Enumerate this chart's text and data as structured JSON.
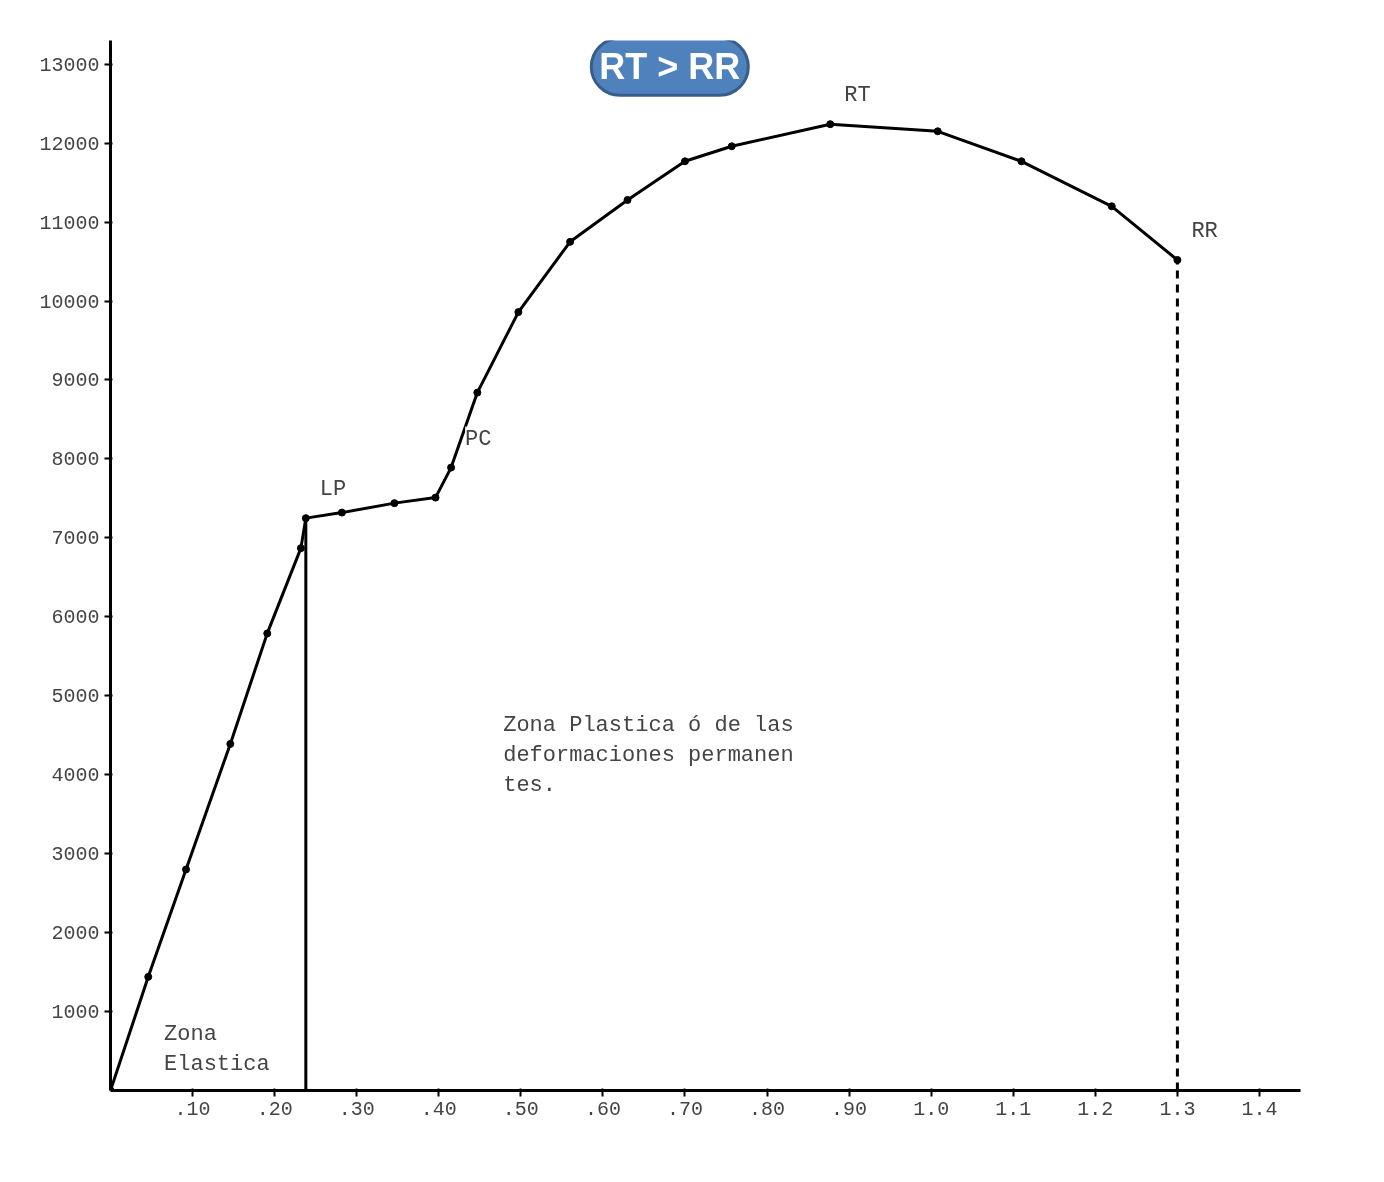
{
  "chart_data": {
    "type": "line",
    "xlim": [
      0,
      1.45
    ],
    "ylim": [
      0,
      13300
    ],
    "xticks": [
      {
        "value": 0.1,
        "label": ".10"
      },
      {
        "value": 0.2,
        "label": ".20"
      },
      {
        "value": 0.3,
        "label": ".30"
      },
      {
        "value": 0.4,
        "label": ".40"
      },
      {
        "value": 0.5,
        "label": ".50"
      },
      {
        "value": 0.6,
        "label": ".60"
      },
      {
        "value": 0.7,
        "label": ".70"
      },
      {
        "value": 0.8,
        "label": ".80"
      },
      {
        "value": 0.9,
        "label": ".90"
      },
      {
        "value": 1.0,
        "label": "1.0"
      },
      {
        "value": 1.1,
        "label": "1.1"
      },
      {
        "value": 1.2,
        "label": "1.2"
      },
      {
        "value": 1.3,
        "label": "1.3"
      },
      {
        "value": 1.4,
        "label": "1.4"
      }
    ],
    "yticks": [
      1000,
      2000,
      3000,
      4000,
      5000,
      6000,
      7000,
      8000,
      9000,
      10000,
      11000,
      12000,
      13000
    ],
    "x": [
      0,
      0.046,
      0.092,
      0.146,
      0.191,
      0.232,
      0.238,
      0.282,
      0.346,
      0.396,
      0.415,
      0.447,
      0.497,
      0.56,
      0.63,
      0.7,
      0.757,
      0.877,
      1.008,
      1.11,
      1.22,
      1.3
    ],
    "series": [
      {
        "color": "#000000",
        "values": [
          0,
          1440,
          2800,
          4390,
          5790,
          6870,
          7250,
          7320,
          7440,
          7510,
          7890,
          8840,
          9860,
          10750,
          11280,
          11770,
          11960,
          12240,
          12150,
          11770,
          11200,
          10520
        ]
      }
    ],
    "marker": "circle",
    "line_style": "solid",
    "grid": false,
    "ref_lines": [
      {
        "axis": "x",
        "value": 0.238,
        "line_style": "solid",
        "color": "#000000"
      },
      {
        "axis": "x",
        "value": 1.3,
        "line_style": "dashed",
        "color": "#000000"
      }
    ],
    "annotations": [
      {
        "text": "LP",
        "x": 0.238,
        "y": 7250
      },
      {
        "text": "PC",
        "x": 0.415,
        "y": 7890
      },
      {
        "text": "RT",
        "x": 0.877,
        "y": 12240
      },
      {
        "text": "RR",
        "x": 1.3,
        "y": 10520
      },
      "RT > RR",
      "Zona\nElastica",
      "Zona Plastica ó de las\ndeformaciones permanen\ntes."
    ]
  }
}
